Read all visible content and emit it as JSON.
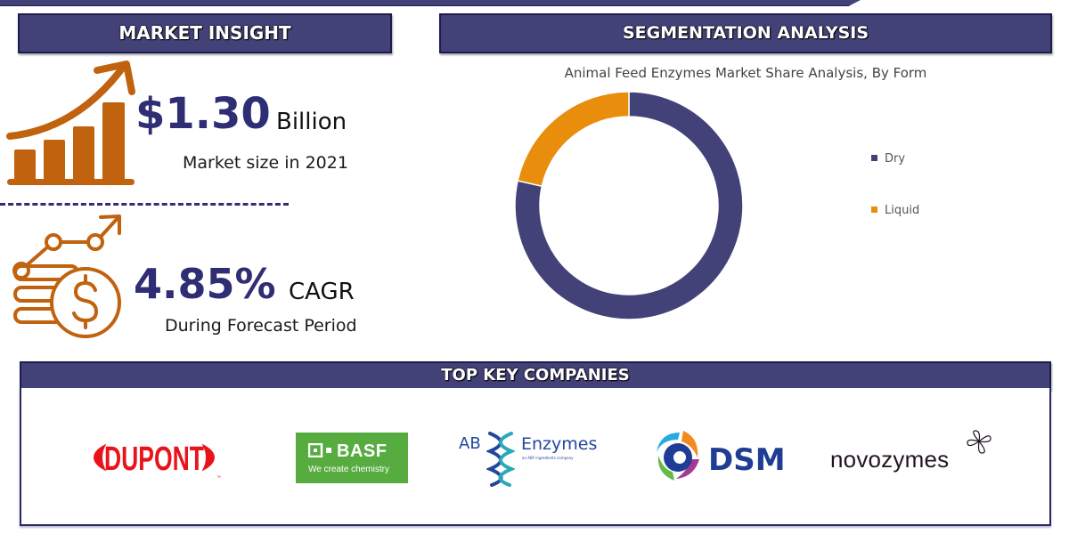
{
  "market_insight": {
    "header": "MARKET INSIGHT",
    "market_size": {
      "value": "$1.30",
      "unit": "Billion",
      "caption": "Market size in 2021",
      "icon": "growth-bar-chart-icon"
    },
    "cagr": {
      "value": "4.85%",
      "unit": "CAGR",
      "caption": "During Forecast Period",
      "icon": "coin-growth-icon"
    }
  },
  "segmentation": {
    "header": "SEGMENTATION ANALYSIS",
    "chart_title": "Animal Feed Enzymes Market Share Analysis, By Form",
    "legend": [
      {
        "label": "Dry",
        "color": "#434278"
      },
      {
        "label": "Liquid",
        "color": "#e88d0c"
      }
    ]
  },
  "companies": {
    "header": "TOP KEY COMPANIES",
    "logos": [
      {
        "name": "DUPONT",
        "color": "#e8141c"
      },
      {
        "name": "BASF",
        "tagline": "We create chemistry",
        "color": "#56ac3f"
      },
      {
        "name": "Enzymes",
        "prefix": "AB",
        "tagline": "an ABF ingredients company",
        "color": "#23479c"
      },
      {
        "name": "DSM",
        "color": "#1f3d94"
      },
      {
        "name": "novozymes",
        "color": "#221522"
      }
    ]
  },
  "colors": {
    "header_bg": "#434278",
    "accent_orange": "#c0620e",
    "value_blue": "#2f2d74"
  },
  "chart_data": {
    "type": "pie",
    "subtype": "donut",
    "title": "Animal Feed Enzymes Market Share Analysis, By Form",
    "categories": [
      "Dry",
      "Liquid"
    ],
    "values": [
      78.5,
      21.5
    ],
    "colors": [
      "#434278",
      "#e88d0c"
    ],
    "legend_position": "right",
    "data_labels": false
  }
}
